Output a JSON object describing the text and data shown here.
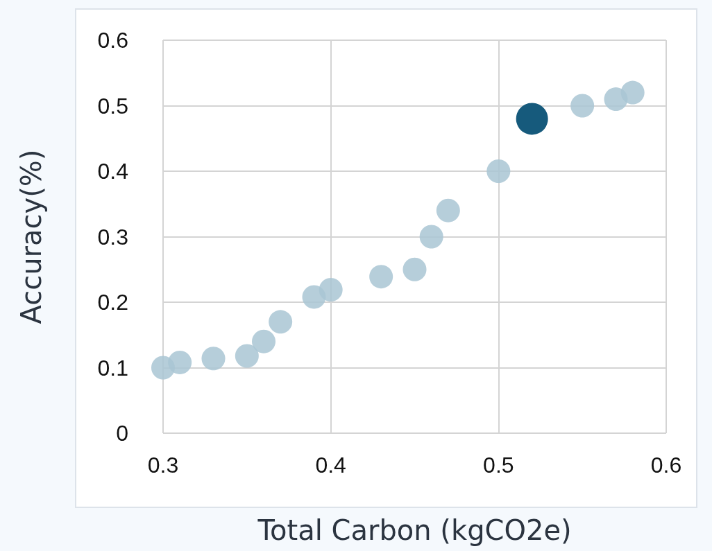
{
  "chart_data": {
    "type": "scatter",
    "xlabel": "Total Carbon (kgCO2e)",
    "ylabel": "Accuracy(%)",
    "series": [
      {
        "color": "#a9c6d4",
        "x": [
          0.3,
          0.31,
          0.33,
          0.35,
          0.36,
          0.37,
          0.39,
          0.4,
          0.43,
          0.45,
          0.46,
          0.47,
          0.5,
          0.55,
          0.57,
          0.58
        ],
        "values": [
          0.1,
          0.108,
          0.114,
          0.118,
          0.14,
          0.17,
          0.208,
          0.219,
          0.239,
          0.25,
          0.3,
          0.34,
          0.4,
          0.5,
          0.51,
          0.52
        ]
      },
      {
        "color": "#165a7c",
        "x": [
          0.52
        ],
        "values": [
          0.48
        ]
      }
    ],
    "xlim": [
      0.3,
      0.6
    ],
    "xticks": [
      0.3,
      0.4,
      0.5,
      0.6
    ],
    "ylim": [
      0,
      0.6
    ],
    "yticks": [
      0,
      0.1,
      0.2,
      0.3,
      0.4,
      0.5,
      0.6
    ],
    "grid": true,
    "marker": "circle"
  }
}
